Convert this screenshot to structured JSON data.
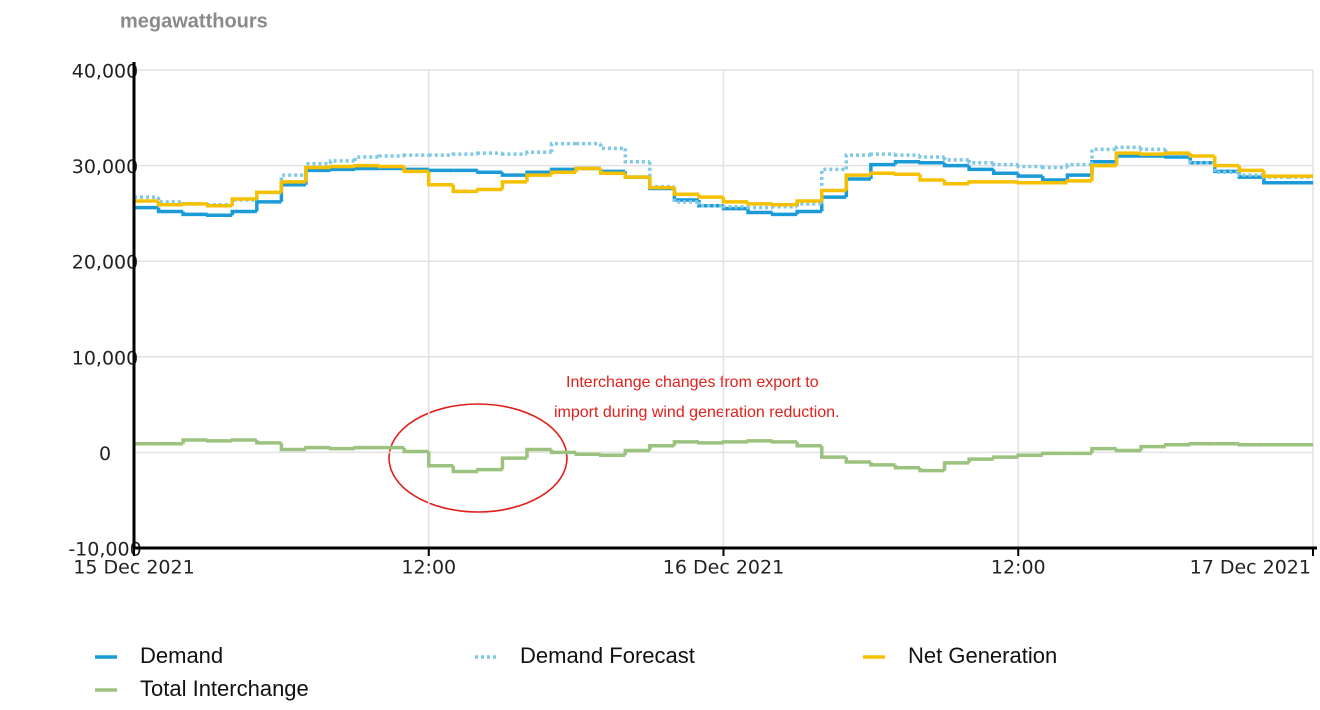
{
  "chart_data": {
    "type": "step-line",
    "y_label": "megawatthours",
    "annotation": [
      "Interchange changes from export to",
      "import during wind generation reduction."
    ],
    "x": [
      0,
      1,
      2,
      3,
      4,
      5,
      6,
      7,
      8,
      9,
      10,
      11,
      12,
      13,
      14,
      15,
      16,
      17,
      18,
      19,
      20,
      21,
      22,
      23,
      24,
      25,
      26,
      27,
      28,
      29,
      30,
      31,
      32,
      33,
      34,
      35,
      36,
      37,
      38,
      39,
      40,
      41,
      42,
      43,
      44,
      45,
      46,
      47
    ],
    "xlim": [
      0,
      48
    ],
    "xticks": [
      {
        "value": 0,
        "label": "15 Dec 2021"
      },
      {
        "value": 12,
        "label": "12:00"
      },
      {
        "value": 24,
        "label": "16 Dec 2021"
      },
      {
        "value": 36,
        "label": "12:00"
      },
      {
        "value": 48,
        "label": "17 Dec 2021"
      }
    ],
    "ylim": [
      -10000,
      40000
    ],
    "yticks": [
      {
        "value": -10000,
        "label": "-10,000"
      },
      0,
      {
        "value": 10000,
        "label": "10,000"
      },
      {
        "value": 20000,
        "label": "20,000"
      },
      {
        "value": 30000,
        "label": "30,000"
      },
      {
        "value": 40000,
        "label": "40,000"
      }
    ],
    "grid": true,
    "series": [
      {
        "name": "Demand",
        "color": "#1a9bd7",
        "style": "solid",
        "values": [
          25600,
          25200,
          24900,
          24800,
          25200,
          26200,
          28000,
          29500,
          29600,
          29700,
          29700,
          29600,
          29500,
          29500,
          29300,
          29000,
          29300,
          29600,
          29700,
          29400,
          28800,
          27600,
          26400,
          25800,
          25500,
          25100,
          24900,
          25200,
          26700,
          28600,
          30100,
          30400,
          30300,
          30000,
          29600,
          29200,
          28900,
          28500,
          29000,
          30400,
          31000,
          31000,
          30900,
          30300,
          29400,
          28800,
          28200,
          28200
        ]
      },
      {
        "name": "Demand Forecast",
        "color": "#7ec8e8",
        "style": "dotted",
        "values": [
          26700,
          26200,
          26000,
          25900,
          26400,
          27200,
          29000,
          30200,
          30500,
          30900,
          31000,
          31100,
          31100,
          31200,
          31300,
          31200,
          31400,
          32300,
          32300,
          31800,
          30400,
          27800,
          26200,
          25800,
          25700,
          25600,
          25700,
          26000,
          29600,
          31100,
          31200,
          31100,
          30900,
          30600,
          30300,
          30100,
          29900,
          29800,
          30100,
          31700,
          31900,
          31700,
          31200,
          30300,
          29300,
          29000,
          28800,
          28800
        ]
      },
      {
        "name": "Net Generation",
        "color": "#f5c000",
        "style": "solid",
        "values": [
          26300,
          25900,
          26000,
          25800,
          26500,
          27200,
          28300,
          29800,
          29900,
          30000,
          29900,
          29400,
          28000,
          27300,
          27500,
          28300,
          29000,
          29300,
          29700,
          29200,
          28800,
          27700,
          27000,
          26700,
          26200,
          26000,
          25900,
          26300,
          27400,
          29000,
          29200,
          29100,
          28500,
          28100,
          28300,
          28300,
          28200,
          28200,
          28400,
          30000,
          31300,
          31200,
          31300,
          31000,
          30000,
          29500,
          28900,
          28900
        ]
      },
      {
        "name": "Total Interchange",
        "color": "#9bc27e",
        "style": "solid",
        "values": [
          900,
          900,
          1300,
          1200,
          1300,
          1000,
          300,
          500,
          400,
          500,
          500,
          100,
          -1400,
          -2000,
          -1800,
          -600,
          300,
          0,
          -200,
          -300,
          200,
          700,
          1100,
          1000,
          1100,
          1200,
          1100,
          700,
          -500,
          -1000,
          -1300,
          -1600,
          -1900,
          -1100,
          -700,
          -500,
          -300,
          -100,
          -100,
          400,
          200,
          600,
          800,
          900,
          900,
          800,
          800,
          800
        ]
      }
    ]
  }
}
